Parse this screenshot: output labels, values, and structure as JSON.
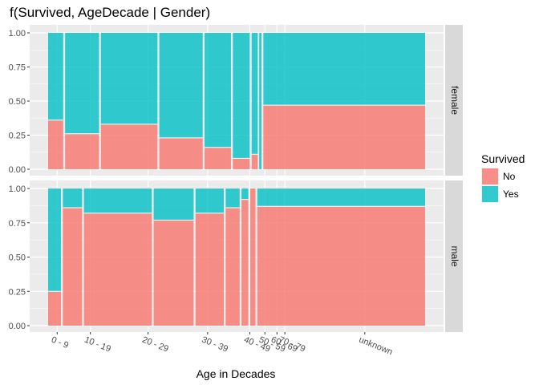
{
  "chart_data": {
    "type": "bar",
    "subtype": "mosaic",
    "title": "f(Survived, AgeDecade | Gender)",
    "xlabel": "Age in Decades",
    "ylabel": "",
    "ylim": [
      0,
      1
    ],
    "y_ticks": [
      "0.00",
      "0.25",
      "0.50",
      "0.75",
      "1.00"
    ],
    "categories": [
      "0 - 9",
      "10 - 19",
      "20 - 29",
      "30 - 39",
      "40 - 49",
      "50 - 59",
      "60 - 69",
      "70 - 79",
      "unknown"
    ],
    "legend": {
      "title": "Survived",
      "position": "right",
      "entries": [
        {
          "name": "No",
          "color": "#F8766D"
        },
        {
          "name": "Yes",
          "color": "#00BFC4"
        }
      ]
    },
    "grid": true,
    "panels": [
      {
        "label": "female",
        "bars": [
          {
            "category": "0 - 9",
            "x_start": 0.0,
            "x_end": 0.04,
            "no": 0.36
          },
          {
            "category": "10 - 19",
            "x_start": 0.045,
            "x_end": 0.135,
            "no": 0.26
          },
          {
            "category": "20 - 29",
            "x_start": 0.14,
            "x_end": 0.29,
            "no": 0.33
          },
          {
            "category": "30 - 39",
            "x_start": 0.295,
            "x_end": 0.41,
            "no": 0.23
          },
          {
            "category": "40 - 49",
            "x_start": 0.415,
            "x_end": 0.485,
            "no": 0.16
          },
          {
            "category": "50 - 59",
            "x_start": 0.49,
            "x_end": 0.535,
            "no": 0.08
          },
          {
            "category": "60 - 69",
            "x_start": 0.54,
            "x_end": 0.556,
            "no": 0.11
          },
          {
            "category": "70 - 79",
            "x_start": 0.56,
            "x_end": 0.566,
            "no": 0.0
          },
          {
            "category": "unknown",
            "x_start": 0.571,
            "x_end": 1.0,
            "no": 0.47
          }
        ]
      },
      {
        "label": "male",
        "bars": [
          {
            "category": "0 - 9",
            "x_start": 0.0,
            "x_end": 0.034,
            "no": 0.25
          },
          {
            "category": "10 - 19",
            "x_start": 0.039,
            "x_end": 0.09,
            "no": 0.86
          },
          {
            "category": "20 - 29",
            "x_start": 0.095,
            "x_end": 0.275,
            "no": 0.82
          },
          {
            "category": "30 - 39",
            "x_start": 0.28,
            "x_end": 0.386,
            "no": 0.77
          },
          {
            "category": "40 - 49",
            "x_start": 0.391,
            "x_end": 0.466,
            "no": 0.82
          },
          {
            "category": "50 - 59",
            "x_start": 0.471,
            "x_end": 0.508,
            "no": 0.86
          },
          {
            "category": "60 - 69",
            "x_start": 0.513,
            "x_end": 0.531,
            "no": 0.92
          },
          {
            "category": "70 - 79",
            "x_start": 0.536,
            "x_end": 0.55,
            "no": 1.0
          },
          {
            "category": "unknown",
            "x_start": 0.555,
            "x_end": 1.0,
            "no": 0.87
          }
        ]
      }
    ],
    "x_tick_positions": [
      0.024,
      0.112,
      0.265,
      0.423,
      0.535,
      0.575,
      0.607,
      0.628,
      0.84
    ]
  }
}
